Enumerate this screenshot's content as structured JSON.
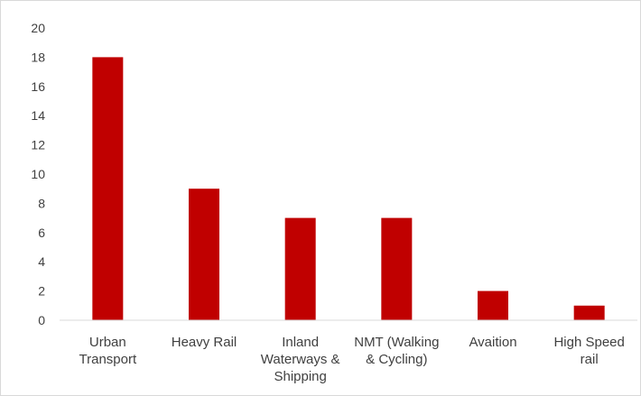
{
  "chart_data": {
    "type": "bar",
    "categories": [
      [
        "Urban",
        "Transport"
      ],
      [
        "Heavy Rail"
      ],
      [
        "Inland",
        "Waterways &",
        "Shipping"
      ],
      [
        "NMT (Walking",
        "& Cycling)"
      ],
      [
        "Avaition"
      ],
      [
        "High Speed",
        "rail"
      ]
    ],
    "values": [
      18,
      9,
      7,
      7,
      2,
      1
    ],
    "ylim": [
      0,
      20
    ],
    "yticks": [
      "0",
      "2",
      "4",
      "6",
      "8",
      "10",
      "12",
      "14",
      "16",
      "18",
      "20"
    ],
    "grid": false,
    "legend": "none",
    "title": "",
    "xlabel": "",
    "ylabel": "",
    "colors": {
      "bar": "#c00000",
      "axis": "#d9d9d9",
      "text": "#404040"
    }
  }
}
